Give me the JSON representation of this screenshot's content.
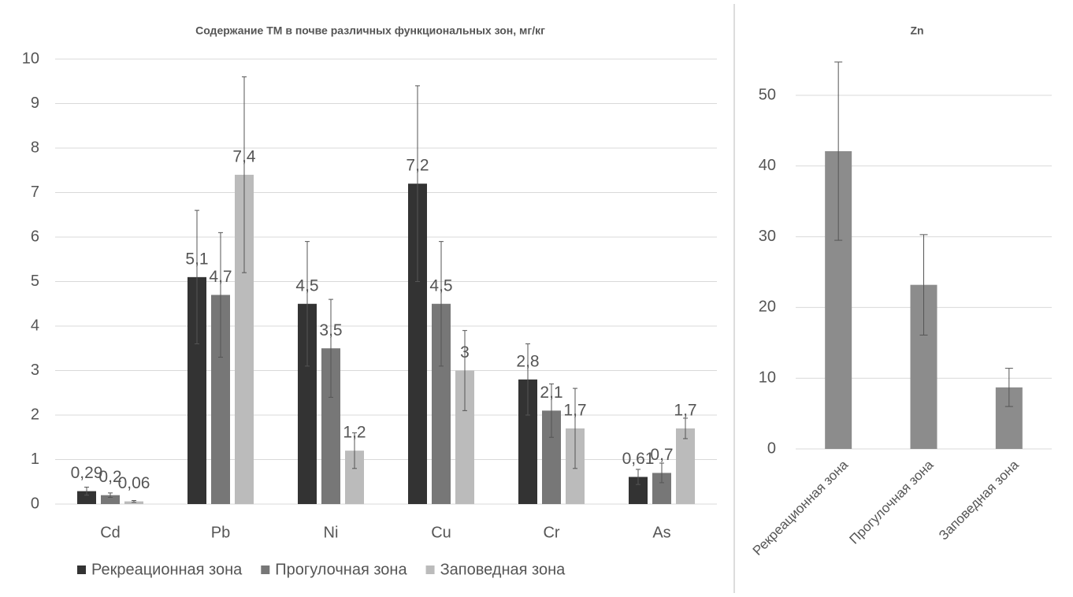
{
  "chart_data": [
    {
      "type": "bar",
      "title": "Содержание ТМ в почве различных функциональных зон, мг/кг",
      "categories": [
        "Cd",
        "Pb",
        "Ni",
        "Cu",
        "Cr",
        "As"
      ],
      "series": [
        {
          "name": "Рекреационная зона",
          "color": "#333333",
          "values": [
            0.29,
            5.1,
            4.5,
            7.2,
            2.8,
            0.61
          ],
          "value_labels": [
            "0,29",
            "5,1",
            "4,5",
            "7,2",
            "2,8",
            "0,61"
          ],
          "errors": [
            0.09,
            1.5,
            1.4,
            2.2,
            0.8,
            0.17
          ]
        },
        {
          "name": "Прогулочная зона",
          "color": "#777777",
          "values": [
            0.2,
            4.7,
            3.5,
            4.5,
            2.1,
            0.7
          ],
          "value_labels": [
            "0,2",
            "4,7",
            "3,5",
            "4,5",
            "2,1",
            "0,7"
          ],
          "errors": [
            0.05,
            1.4,
            1.1,
            1.4,
            0.6,
            0.22
          ]
        },
        {
          "name": "Заповедная зона",
          "color": "#bbbbbb",
          "values": [
            0.06,
            7.4,
            1.2,
            3,
            1.7,
            1.7
          ],
          "value_labels": [
            "0,06",
            "7,4",
            "1,2",
            "3",
            "1,7",
            "1,7"
          ],
          "errors": [
            0.02,
            2.2,
            0.4,
            0.9,
            0.9,
            0.23
          ]
        }
      ],
      "ylim": [
        0,
        10
      ],
      "yticks": [
        0,
        1,
        2,
        3,
        4,
        5,
        6,
        7,
        8,
        9,
        10
      ],
      "grid": true,
      "legend": "bottom"
    },
    {
      "type": "bar",
      "title": "Zn",
      "categories": [
        "Рекреационная зона",
        "Прогулочная зона",
        "Заповедная зона"
      ],
      "values": [
        42.1,
        23.2,
        8.7
      ],
      "errors": [
        12.6,
        7.1,
        2.7
      ],
      "color": "#8c8c8c",
      "ylim": [
        0,
        55
      ],
      "yticks": [
        0,
        10,
        20,
        30,
        40,
        50
      ],
      "grid": true
    }
  ]
}
